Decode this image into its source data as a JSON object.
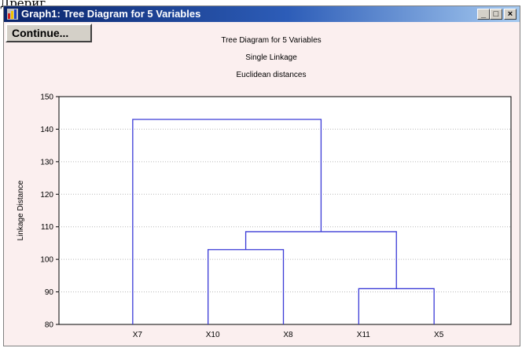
{
  "page_caption": "Дрериг",
  "window": {
    "title": "Graph1: Tree Diagram for 5 Variables",
    "minimize_glyph": "_",
    "restore_glyph": "□",
    "close_glyph": "×"
  },
  "toolbar": {
    "continue_label": "Continue..."
  },
  "chart_data": {
    "type": "dendrogram",
    "title": "Tree Diagram for 5 Variables",
    "subtitle_1": "Single Linkage",
    "subtitle_2": "Euclidean distances",
    "ylabel": "Linkage Distance",
    "xlabel": "",
    "ylim": [
      80,
      150
    ],
    "yticks": [
      80,
      90,
      100,
      110,
      120,
      130,
      140,
      150
    ],
    "grid": true,
    "leaves": [
      "X7",
      "X10",
      "X8",
      "X11",
      "X5"
    ],
    "merges": [
      {
        "left": "X11",
        "right": "X5",
        "height": 91
      },
      {
        "left": "X10",
        "right": "X8",
        "height": 103
      },
      {
        "left": "X10,X8",
        "right": "X11,X5",
        "height": 108.5
      },
      {
        "left": "X7",
        "right": "X10,X8,X11,X5",
        "height": 143
      }
    ],
    "line_color": "#3a3ad6",
    "background_color": "#ffffff"
  }
}
